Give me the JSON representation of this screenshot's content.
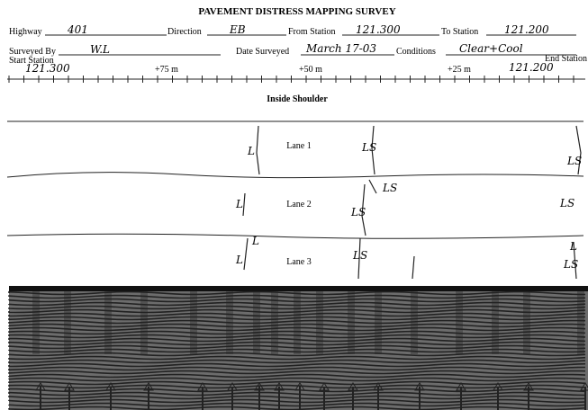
{
  "header": {
    "title": "PAVEMENT DISTRESS MAPPING SURVEY"
  },
  "form": {
    "highway_label": "Highway",
    "highway": "401",
    "direction_label": "Direction",
    "direction": "EB",
    "from_label": "From Station",
    "from": "121.300",
    "to_label": "To Station",
    "to": "121.200",
    "surveyed_by_label": "Surveyed By",
    "surveyed_by": "W.L",
    "date_label": "Date Surveyed",
    "date": "March 17-03",
    "conditions_label": "Conditions",
    "conditions": "Clear+Cool",
    "start_label": "Start Station",
    "start": "121.300",
    "end_label": "End Station",
    "end": "121.200"
  },
  "scale": [
    "+75 m",
    "+50 m",
    "+25 m"
  ],
  "lanes": {
    "shoulder": "Inside Shoulder",
    "lane1": "Lane 1",
    "lane2": "Lane 2",
    "lane3": "Lane 3"
  },
  "cracks": [
    "L",
    "LS",
    "LS",
    "L",
    "LS",
    "LS",
    "LS",
    "L",
    "L",
    "LS",
    "L",
    "LS"
  ]
}
